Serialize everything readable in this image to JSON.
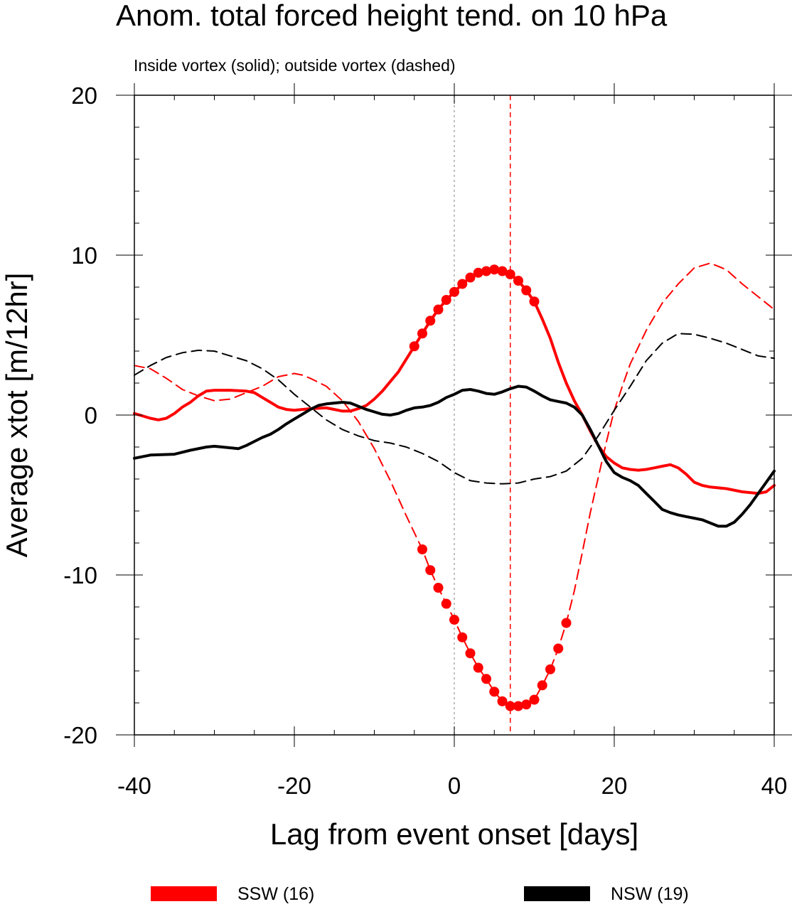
{
  "chart_data": {
    "type": "line",
    "title": "Anom. total forced height tend. on 10 hPa",
    "subtitle": "Inside vortex (solid); outside vortex (dashed)",
    "xlabel": "Lag from event onset [days]",
    "ylabel": "Average xtot [m/12hr]",
    "xlim": [
      -40,
      40
    ],
    "ylim": [
      -20,
      20
    ],
    "xticks": [
      -40,
      -20,
      0,
      20,
      40
    ],
    "yticks": [
      20,
      10,
      0,
      -10,
      -20
    ],
    "xtick_labels": [
      "-40",
      "-20",
      "0",
      "20",
      "40"
    ],
    "ytick_labels": [
      "20",
      "10",
      "0",
      "-10",
      "-20"
    ],
    "grid": false,
    "legend_placement": "bottom",
    "reference_lines": [
      {
        "x": 0,
        "color": "#aaaaaa",
        "style": "dotted"
      },
      {
        "x": 7,
        "color": "#ff0000",
        "style": "dashed"
      }
    ],
    "legend": [
      {
        "label": "SSW (16)",
        "color": "#ff0000"
      },
      {
        "label": "NSW (19)",
        "color": "#000000"
      }
    ],
    "series": [
      {
        "group": "SSW (16)",
        "region": "inside vortex",
        "color": "#ff0000",
        "dash": "solid",
        "width": 4,
        "points": [
          [
            -40,
            0.1
          ],
          [
            -38,
            -0.2
          ],
          [
            -37,
            -0.3
          ],
          [
            -36,
            -0.2
          ],
          [
            -35,
            0.1
          ],
          [
            -34,
            0.5
          ],
          [
            -33,
            0.8
          ],
          [
            -32,
            1.2
          ],
          [
            -31,
            1.5
          ],
          [
            -30,
            1.55
          ],
          [
            -28,
            1.55
          ],
          [
            -26,
            1.5
          ],
          [
            -25,
            1.4
          ],
          [
            -24,
            1.1
          ],
          [
            -23,
            0.8
          ],
          [
            -22,
            0.5
          ],
          [
            -21,
            0.35
          ],
          [
            -20,
            0.3
          ],
          [
            -19,
            0.35
          ],
          [
            -18,
            0.4
          ],
          [
            -16,
            0.45
          ],
          [
            -15,
            0.35
          ],
          [
            -14,
            0.25
          ],
          [
            -13,
            0.25
          ],
          [
            -12,
            0.4
          ],
          [
            -11,
            0.6
          ],
          [
            -10,
            1.0
          ],
          [
            -9,
            1.5
          ],
          [
            -8,
            2.1
          ],
          [
            -7,
            2.7
          ],
          [
            -6,
            3.5
          ],
          [
            -5,
            4.3
          ],
          [
            -4,
            5.1
          ],
          [
            -3,
            5.9
          ],
          [
            -2,
            6.6
          ],
          [
            -1,
            7.2
          ],
          [
            0,
            7.7
          ],
          [
            1,
            8.2
          ],
          [
            2,
            8.6
          ],
          [
            3,
            8.9
          ],
          [
            4,
            9.0
          ],
          [
            5,
            9.1
          ],
          [
            6,
            9.0
          ],
          [
            7,
            8.8
          ],
          [
            8,
            8.4
          ],
          [
            9,
            7.8
          ],
          [
            10,
            7.1
          ],
          [
            11,
            6.0
          ],
          [
            12,
            4.8
          ],
          [
            13,
            3.3
          ],
          [
            14,
            2.0
          ],
          [
            15,
            0.9
          ],
          [
            16,
            0
          ],
          [
            17,
            -1.0
          ],
          [
            18,
            -1.9
          ],
          [
            19,
            -2.6
          ],
          [
            20,
            -3.0
          ],
          [
            21,
            -3.3
          ],
          [
            22,
            -3.4
          ],
          [
            23,
            -3.45
          ],
          [
            24,
            -3.4
          ],
          [
            25,
            -3.3
          ],
          [
            26,
            -3.2
          ],
          [
            27,
            -3.1
          ],
          [
            28,
            -3.3
          ],
          [
            29,
            -3.7
          ],
          [
            30,
            -4.2
          ],
          [
            31,
            -4.4
          ],
          [
            32,
            -4.5
          ],
          [
            34,
            -4.6
          ],
          [
            36,
            -4.8
          ],
          [
            38,
            -4.9
          ],
          [
            39,
            -4.8
          ],
          [
            40,
            -4.4
          ]
        ],
        "marked_x": [
          -5,
          -4,
          -3,
          -2,
          -1,
          0,
          1,
          2,
          3,
          4,
          5,
          6,
          7,
          8,
          9,
          10
        ]
      },
      {
        "group": "SSW (16)",
        "region": "outside vortex",
        "color": "#ff0000",
        "dash": "dashed",
        "width": 2,
        "points": [
          [
            -40,
            3.1
          ],
          [
            -38,
            2.9
          ],
          [
            -36,
            2.3
          ],
          [
            -34,
            1.6
          ],
          [
            -32,
            1.2
          ],
          [
            -30,
            0.9
          ],
          [
            -28,
            1.0
          ],
          [
            -26,
            1.4
          ],
          [
            -24,
            1.8
          ],
          [
            -22,
            2.4
          ],
          [
            -20,
            2.6
          ],
          [
            -19,
            2.5
          ],
          [
            -18,
            2.3
          ],
          [
            -16,
            1.8
          ],
          [
            -14,
            0.9
          ],
          [
            -12,
            -0.4
          ],
          [
            -10,
            -2.1
          ],
          [
            -8,
            -4.1
          ],
          [
            -6,
            -6.3
          ],
          [
            -4,
            -8.4
          ],
          [
            -3,
            -9.7
          ],
          [
            -2,
            -10.8
          ],
          [
            -1,
            -11.8
          ],
          [
            0,
            -12.8
          ],
          [
            1,
            -13.9
          ],
          [
            2,
            -14.9
          ],
          [
            3,
            -15.8
          ],
          [
            4,
            -16.5
          ],
          [
            5,
            -17.3
          ],
          [
            6,
            -17.9
          ],
          [
            7,
            -18.2
          ],
          [
            8,
            -18.2
          ],
          [
            9,
            -18.1
          ],
          [
            10,
            -17.8
          ],
          [
            11,
            -16.9
          ],
          [
            12,
            -15.9
          ],
          [
            13,
            -14.6
          ],
          [
            14,
            -13.0
          ],
          [
            15,
            -11.0
          ],
          [
            16,
            -8.6
          ],
          [
            17,
            -6.1
          ],
          [
            18,
            -3.9
          ],
          [
            19,
            -1.7
          ],
          [
            20,
            0.3
          ],
          [
            21,
            1.8
          ],
          [
            22,
            3.2
          ],
          [
            24,
            5.3
          ],
          [
            26,
            7.0
          ],
          [
            28,
            8.2
          ],
          [
            30,
            9.2
          ],
          [
            32,
            9.5
          ],
          [
            34,
            9.1
          ],
          [
            36,
            8.2
          ],
          [
            38,
            7.4
          ],
          [
            40,
            6.6
          ]
        ],
        "marked_x": [
          -4,
          -3,
          -2,
          -1,
          0,
          1,
          2,
          3,
          4,
          5,
          6,
          7,
          8,
          9,
          10,
          11,
          12,
          13,
          14
        ]
      },
      {
        "group": "NSW (19)",
        "region": "inside vortex",
        "color": "#000000",
        "dash": "solid",
        "width": 4,
        "points": [
          [
            -40,
            -2.7
          ],
          [
            -38,
            -2.5
          ],
          [
            -35,
            -2.45
          ],
          [
            -33,
            -2.2
          ],
          [
            -31,
            -2.0
          ],
          [
            -30,
            -1.95
          ],
          [
            -29,
            -2.0
          ],
          [
            -28,
            -2.05
          ],
          [
            -27,
            -2.1
          ],
          [
            -26,
            -1.9
          ],
          [
            -25,
            -1.65
          ],
          [
            -24,
            -1.4
          ],
          [
            -23,
            -1.2
          ],
          [
            -22,
            -0.9
          ],
          [
            -21,
            -0.55
          ],
          [
            -20,
            -0.25
          ],
          [
            -19,
            0.05
          ],
          [
            -18,
            0.35
          ],
          [
            -17,
            0.6
          ],
          [
            -16,
            0.7
          ],
          [
            -15,
            0.75
          ],
          [
            -14,
            0.8
          ],
          [
            -13,
            0.75
          ],
          [
            -12,
            0.55
          ],
          [
            -11,
            0.35
          ],
          [
            -10,
            0.2
          ],
          [
            -9,
            0.05
          ],
          [
            -8,
            0.0
          ],
          [
            -7,
            0.1
          ],
          [
            -6,
            0.3
          ],
          [
            -5,
            0.45
          ],
          [
            -4,
            0.5
          ],
          [
            -3,
            0.6
          ],
          [
            -2,
            0.8
          ],
          [
            -1,
            1.1
          ],
          [
            0,
            1.3
          ],
          [
            1,
            1.55
          ],
          [
            2,
            1.6
          ],
          [
            3,
            1.5
          ],
          [
            4,
            1.35
          ],
          [
            5,
            1.3
          ],
          [
            6,
            1.45
          ],
          [
            7,
            1.65
          ],
          [
            8,
            1.8
          ],
          [
            9,
            1.75
          ],
          [
            10,
            1.5
          ],
          [
            11,
            1.2
          ],
          [
            12,
            0.95
          ],
          [
            13,
            0.85
          ],
          [
            14,
            0.75
          ],
          [
            15,
            0.5
          ],
          [
            16,
            0.0
          ],
          [
            17,
            -0.9
          ],
          [
            18,
            -1.9
          ],
          [
            19,
            -2.9
          ],
          [
            20,
            -3.6
          ],
          [
            21,
            -3.9
          ],
          [
            22,
            -4.1
          ],
          [
            23,
            -4.4
          ],
          [
            24,
            -4.9
          ],
          [
            25,
            -5.4
          ],
          [
            26,
            -5.9
          ],
          [
            27,
            -6.1
          ],
          [
            28,
            -6.25
          ],
          [
            29,
            -6.35
          ],
          [
            30,
            -6.45
          ],
          [
            31,
            -6.55
          ],
          [
            32,
            -6.75
          ],
          [
            33,
            -6.95
          ],
          [
            34,
            -6.95
          ],
          [
            35,
            -6.7
          ],
          [
            36,
            -6.2
          ],
          [
            37,
            -5.6
          ],
          [
            38,
            -4.9
          ],
          [
            39,
            -4.2
          ],
          [
            40,
            -3.5
          ]
        ],
        "marked_x": []
      },
      {
        "group": "NSW (19)",
        "region": "outside vortex",
        "color": "#000000",
        "dash": "dashed",
        "width": 2,
        "points": [
          [
            -40,
            2.5
          ],
          [
            -38,
            3.1
          ],
          [
            -36,
            3.6
          ],
          [
            -34,
            3.9
          ],
          [
            -32,
            4.05
          ],
          [
            -30,
            4.0
          ],
          [
            -28,
            3.7
          ],
          [
            -26,
            3.4
          ],
          [
            -24,
            2.9
          ],
          [
            -22,
            2.2
          ],
          [
            -20,
            1.3
          ],
          [
            -18,
            0.5
          ],
          [
            -16,
            -0.3
          ],
          [
            -14,
            -0.9
          ],
          [
            -12,
            -1.3
          ],
          [
            -10,
            -1.6
          ],
          [
            -8,
            -1.75
          ],
          [
            -6,
            -2.0
          ],
          [
            -4,
            -2.4
          ],
          [
            -2,
            -2.9
          ],
          [
            0,
            -3.6
          ],
          [
            2,
            -4.1
          ],
          [
            4,
            -4.25
          ],
          [
            6,
            -4.3
          ],
          [
            8,
            -4.25
          ],
          [
            10,
            -4.0
          ],
          [
            12,
            -3.85
          ],
          [
            14,
            -3.5
          ],
          [
            16,
            -2.7
          ],
          [
            18,
            -1.3
          ],
          [
            20,
            0.3
          ],
          [
            22,
            1.8
          ],
          [
            24,
            3.4
          ],
          [
            26,
            4.5
          ],
          [
            28,
            5.1
          ],
          [
            30,
            5.05
          ],
          [
            32,
            4.8
          ],
          [
            34,
            4.5
          ],
          [
            36,
            4.1
          ],
          [
            38,
            3.7
          ],
          [
            40,
            3.55
          ]
        ],
        "marked_x": []
      }
    ]
  }
}
